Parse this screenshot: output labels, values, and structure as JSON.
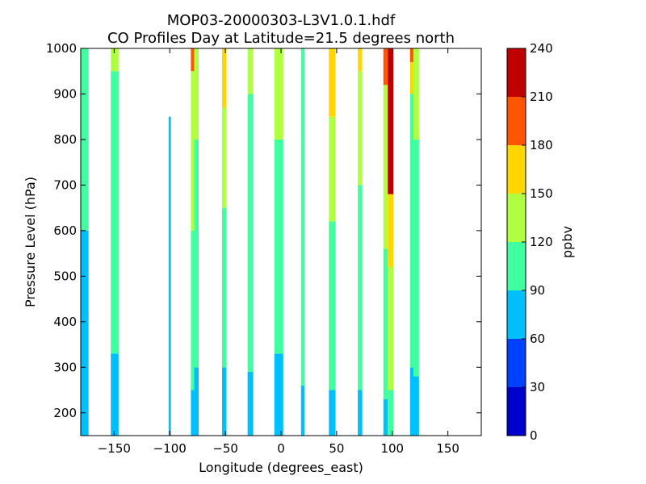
{
  "chart_data": {
    "type": "heatmap",
    "title": "MOP03-20000303-L3V1.0.1.hdf",
    "subtitle": "CO Profiles Day at Latitude=21.5 degrees north",
    "xlabel": "Longitude (degrees_east)",
    "ylabel": "Pressure Level (hPa)",
    "xlim": [
      -180,
      180
    ],
    "ylim": [
      150,
      1000
    ],
    "xticks": [
      -150,
      -100,
      -50,
      0,
      50,
      100,
      150
    ],
    "xtick_labels": [
      "−150",
      "−100",
      "−50",
      "0",
      "50",
      "100",
      "150"
    ],
    "yticks": [
      200,
      300,
      400,
      500,
      600,
      700,
      800,
      900,
      1000
    ],
    "ytick_labels": [
      "200",
      "300",
      "400",
      "500",
      "600",
      "700",
      "800",
      "900",
      "1000"
    ],
    "colorbar": {
      "label": "ppbv",
      "levels": [
        0,
        30,
        60,
        90,
        120,
        150,
        180,
        210,
        240
      ],
      "level_labels": [
        "0",
        "30",
        "60",
        "90",
        "120",
        "150",
        "180",
        "210",
        "240"
      ],
      "colors": [
        "#0000cd",
        "#0040ff",
        "#00bfff",
        "#40ffa0",
        "#b0ff40",
        "#ffd700",
        "#ff5500",
        "#c00000"
      ]
    },
    "columns": [
      {
        "lon_min": -180,
        "lon_max": -173,
        "layers": [
          [
            150,
            600,
            75
          ],
          [
            600,
            1000,
            105
          ]
        ]
      },
      {
        "lon_min": -153,
        "lon_max": -146,
        "layers": [
          [
            150,
            330,
            75
          ],
          [
            330,
            950,
            105
          ],
          [
            950,
            1000,
            135
          ]
        ]
      },
      {
        "lon_min": -101,
        "lon_max": -99,
        "layers": [
          [
            150,
            850,
            75
          ]
        ]
      },
      {
        "lon_min": -81,
        "lon_max": -78,
        "layers": [
          [
            150,
            250,
            75
          ],
          [
            250,
            600,
            105
          ],
          [
            600,
            950,
            135
          ],
          [
            950,
            1000,
            195
          ]
        ]
      },
      {
        "lon_min": -78,
        "lon_max": -74,
        "layers": [
          [
            150,
            300,
            75
          ],
          [
            300,
            800,
            105
          ],
          [
            800,
            1000,
            135
          ]
        ]
      },
      {
        "lon_min": -53,
        "lon_max": -49,
        "layers": [
          [
            150,
            300,
            75
          ],
          [
            300,
            650,
            105
          ],
          [
            650,
            870,
            135
          ],
          [
            870,
            1000,
            165
          ]
        ]
      },
      {
        "lon_min": -30,
        "lon_max": -25,
        "layers": [
          [
            150,
            290,
            75
          ],
          [
            290,
            900,
            105
          ],
          [
            900,
            1000,
            135
          ]
        ]
      },
      {
        "lon_min": -6,
        "lon_max": 2,
        "layers": [
          [
            150,
            330,
            75
          ],
          [
            330,
            800,
            105
          ],
          [
            800,
            1000,
            135
          ]
        ]
      },
      {
        "lon_min": 18,
        "lon_max": 21,
        "layers": [
          [
            150,
            260,
            75
          ],
          [
            260,
            1000,
            105
          ]
        ]
      },
      {
        "lon_min": 43,
        "lon_max": 49,
        "layers": [
          [
            150,
            250,
            75
          ],
          [
            250,
            620,
            105
          ],
          [
            620,
            850,
            135
          ],
          [
            850,
            1000,
            165
          ]
        ]
      },
      {
        "lon_min": 69,
        "lon_max": 73,
        "layers": [
          [
            150,
            250,
            75
          ],
          [
            250,
            700,
            105
          ],
          [
            700,
            950,
            135
          ],
          [
            950,
            1000,
            165
          ]
        ]
      },
      {
        "lon_min": 92,
        "lon_max": 96,
        "layers": [
          [
            150,
            230,
            75
          ],
          [
            230,
            560,
            105
          ],
          [
            560,
            920,
            135
          ],
          [
            920,
            1000,
            195
          ]
        ]
      },
      {
        "lon_min": 96,
        "lon_max": 101,
        "layers": [
          [
            150,
            250,
            105
          ],
          [
            250,
            520,
            135
          ],
          [
            520,
            680,
            165
          ],
          [
            680,
            1000,
            225
          ]
        ]
      },
      {
        "lon_min": 116,
        "lon_max": 119,
        "layers": [
          [
            150,
            300,
            75
          ],
          [
            300,
            900,
            105
          ],
          [
            900,
            970,
            165
          ],
          [
            970,
            1000,
            195
          ]
        ]
      },
      {
        "lon_min": 119,
        "lon_max": 124,
        "layers": [
          [
            150,
            280,
            75
          ],
          [
            280,
            800,
            105
          ],
          [
            800,
            1000,
            135
          ]
        ]
      }
    ]
  }
}
